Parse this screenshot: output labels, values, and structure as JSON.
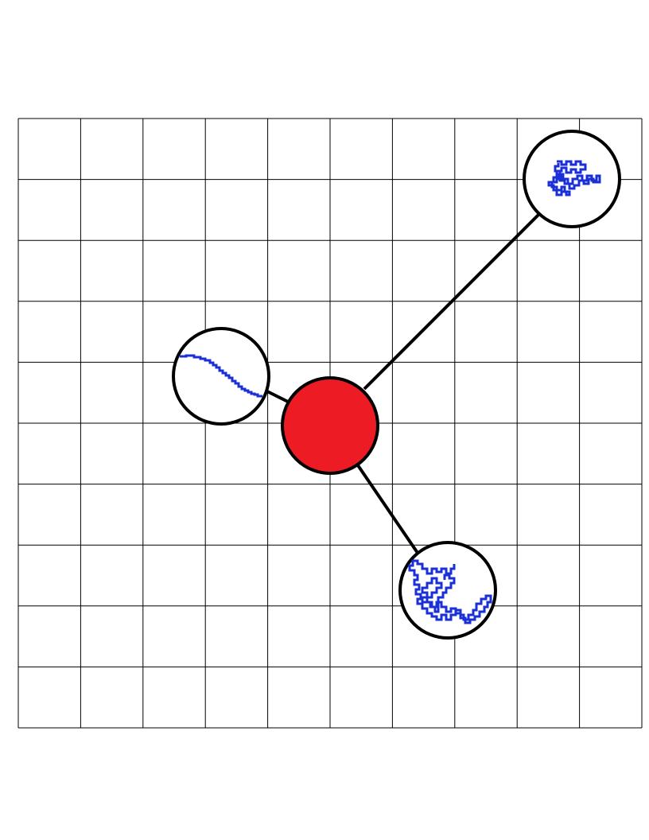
{
  "diagram": {
    "grid": {
      "columns": 10,
      "rows": 10,
      "line_color": "#000000"
    },
    "center_node": {
      "fill_color": "#ed1c24",
      "outline_color": "#000000"
    },
    "satellites": [
      {
        "id": "top-right",
        "content": "compact-coil-polymer"
      },
      {
        "id": "left",
        "content": "extended-chain-polymer"
      },
      {
        "id": "bottom-right",
        "content": "random-walk-polymer"
      }
    ],
    "connector_color": "#000000",
    "polymer_color": "#1a2fd6"
  }
}
